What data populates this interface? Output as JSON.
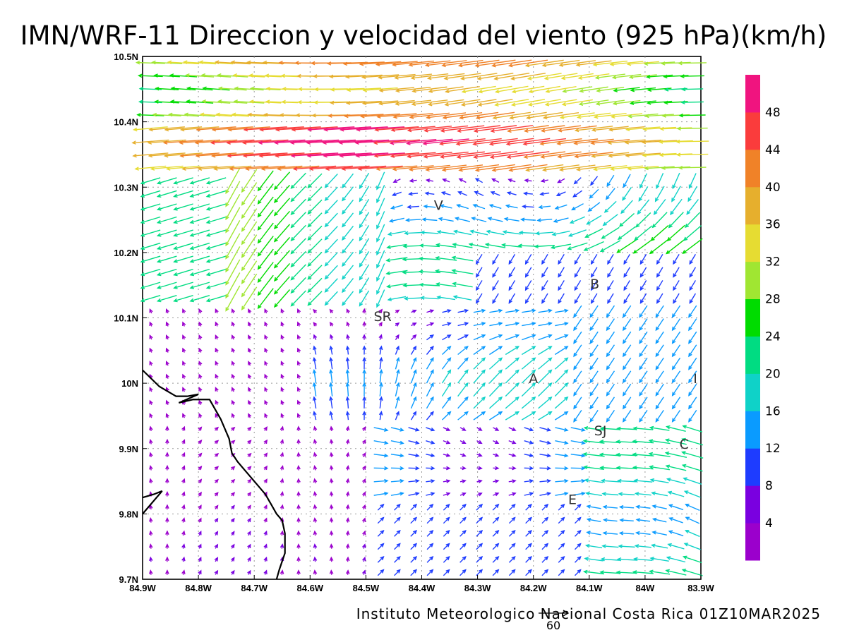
{
  "title": "IMN/WRF-11 Direccion y velocidad del viento (925 hPa)(km/h)",
  "footer": "Instituto Meteorologico Nacional Costa Rica 01Z10MAR2025",
  "reference_vector_label": "60",
  "chart_data": {
    "type": "wind_vector_map",
    "lon_range": [
      -84.9,
      -83.9
    ],
    "lat_range": [
      9.7,
      10.5
    ],
    "grid": true,
    "x_ticks": [
      "84.9W",
      "84.8W",
      "84.7W",
      "84.6W",
      "84.5W",
      "84.4W",
      "84.3W",
      "84.2W",
      "84.1W",
      "84W",
      "83.9W"
    ],
    "y_ticks": [
      "9.7N",
      "9.8N",
      "9.9N",
      "10N",
      "10.1N",
      "10.2N",
      "10.3N",
      "10.4N",
      "10.5N"
    ],
    "colorbar": {
      "labels": [
        "4",
        "8",
        "12",
        "16",
        "20",
        "24",
        "28",
        "32",
        "36",
        "40",
        "44",
        "48"
      ],
      "colors": [
        "#9b00cc",
        "#7a00e0",
        "#1e3cff",
        "#0a9bff",
        "#0fd2c8",
        "#00dc82",
        "#00dc00",
        "#a0e632",
        "#e6dc32",
        "#e6af2d",
        "#f08228",
        "#fa3c3c",
        "#f0147f"
      ]
    },
    "place_labels": [
      {
        "name": "V",
        "lon": -84.37,
        "lat": 10.265
      },
      {
        "name": "SR",
        "lon": -84.47,
        "lat": 10.095
      },
      {
        "name": "B",
        "lon": -84.09,
        "lat": 10.145
      },
      {
        "name": "A",
        "lon": -84.2,
        "lat": 10.0
      },
      {
        "name": "I",
        "lon": -83.91,
        "lat": 10.0
      },
      {
        "name": "SJ",
        "lon": -84.08,
        "lat": 9.92
      },
      {
        "name": "C",
        "lon": -83.93,
        "lat": 9.9
      },
      {
        "name": "E",
        "lon": -84.13,
        "lat": 9.815
      }
    ],
    "coastline": [
      [
        -84.9,
        10.02
      ],
      [
        -84.87,
        9.995
      ],
      [
        -84.84,
        9.98
      ],
      [
        -84.82,
        9.98
      ],
      [
        -84.8,
        9.983
      ],
      [
        -84.835,
        9.97
      ],
      [
        -84.81,
        9.975
      ],
      [
        -84.78,
        9.975
      ],
      [
        -84.76,
        9.945
      ],
      [
        -84.745,
        9.915
      ],
      [
        -84.74,
        9.893
      ],
      [
        -84.73,
        9.88
      ],
      [
        -84.72,
        9.87
      ],
      [
        -84.7,
        9.85
      ],
      [
        -84.68,
        9.83
      ],
      [
        -84.67,
        9.815
      ],
      [
        -84.66,
        9.8
      ],
      [
        -84.65,
        9.79
      ],
      [
        -84.645,
        9.77
      ],
      [
        -84.645,
        9.74
      ],
      [
        -84.655,
        9.715
      ],
      [
        -84.66,
        9.7
      ]
    ],
    "coastline_2": [
      [
        -84.9,
        9.825
      ],
      [
        -84.88,
        9.83
      ],
      [
        -84.865,
        9.835
      ],
      [
        -84.9,
        9.8
      ]
    ]
  }
}
